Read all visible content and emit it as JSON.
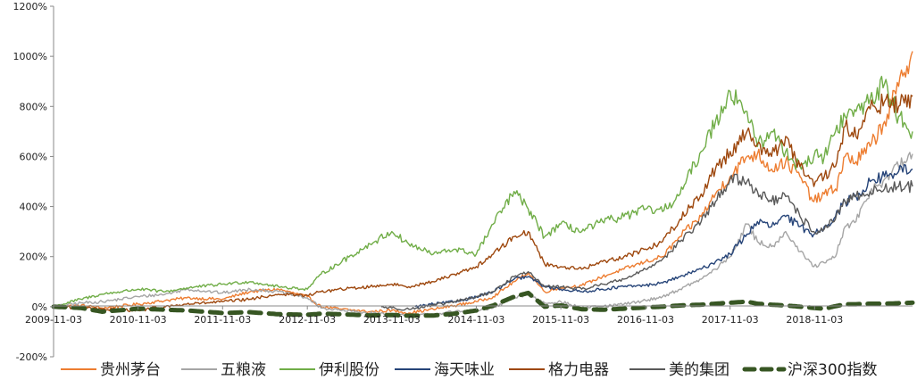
{
  "chart_data": {
    "type": "line",
    "title": "",
    "xlabel": "",
    "ylabel": "",
    "ylim": [
      -200,
      1200
    ],
    "y_unit": "%",
    "y_ticks": [
      -200,
      0,
      200,
      400,
      600,
      800,
      1000,
      1200
    ],
    "y_tick_labels": [
      "-200%",
      "0%",
      "200%",
      "400%",
      "600%",
      "800%",
      "1000%",
      "1200%"
    ],
    "x_range": [
      "2009-11-03",
      "2019-12-31"
    ],
    "x_ticks": [
      "2009-11-03",
      "2010-11-03",
      "2011-11-03",
      "2012-11-03",
      "2013-11-03",
      "2014-11-03",
      "2015-11-03",
      "2016-11-03",
      "2017-11-03",
      "2018-11-03"
    ],
    "x_tick_labels": [
      "2009-11-03",
      "2010-11-03",
      "2011-11-03",
      "2012-11-03",
      "2013-11-03",
      "2014-11-03",
      "2015-11-03",
      "2016-11-03",
      "2017-11-03",
      "2018-11-03"
    ],
    "grid": false,
    "legend_position": "bottom",
    "series": [
      {
        "name": "贵州茅台",
        "color": "#ED7D31",
        "dashed": false,
        "x": [
          "2009-11-03",
          "2010-03-01",
          "2010-06-01",
          "2010-11-03",
          "2011-03-01",
          "2011-06-01",
          "2011-11-03",
          "2012-03-01",
          "2012-07-01",
          "2012-11-03",
          "2013-01-01",
          "2013-04-01",
          "2013-08-01",
          "2013-11-03",
          "2014-01-15",
          "2014-05-01",
          "2014-08-01",
          "2014-11-03",
          "2015-01-15",
          "2015-04-15",
          "2015-06-15",
          "2015-08-25",
          "2015-11-03",
          "2016-02-01",
          "2016-05-01",
          "2016-08-01",
          "2016-11-03",
          "2017-01-15",
          "2017-04-01",
          "2017-07-01",
          "2017-09-01",
          "2017-11-03",
          "2018-01-15",
          "2018-03-01",
          "2018-05-01",
          "2018-07-01",
          "2018-09-01",
          "2018-10-31",
          "2018-12-15",
          "2019-02-01",
          "2019-03-15",
          "2019-05-01",
          "2019-07-01",
          "2019-09-01",
          "2019-11-01",
          "2019-12-31"
        ],
        "values": [
          0,
          5,
          -5,
          10,
          25,
          35,
          30,
          60,
          70,
          40,
          0,
          -10,
          -20,
          -15,
          -25,
          -10,
          5,
          20,
          40,
          100,
          135,
          60,
          75,
          85,
          120,
          150,
          180,
          200,
          280,
          360,
          450,
          520,
          600,
          610,
          550,
          580,
          520,
          420,
          450,
          470,
          600,
          580,
          640,
          740,
          880,
          1020
        ]
      },
      {
        "name": "五粮液",
        "color": "#A5A5A5",
        "dashed": false,
        "x": [
          "2009-11-03",
          "2010-03-01",
          "2010-06-01",
          "2010-11-03",
          "2011-03-01",
          "2011-06-01",
          "2011-11-03",
          "2012-03-01",
          "2012-07-01",
          "2012-11-03",
          "2013-01-01",
          "2013-04-01",
          "2013-08-01",
          "2013-11-03",
          "2014-01-15",
          "2014-05-01",
          "2014-08-01",
          "2014-11-03",
          "2015-01-15",
          "2015-04-15",
          "2015-06-15",
          "2015-08-25",
          "2015-11-03",
          "2016-02-01",
          "2016-05-01",
          "2016-08-01",
          "2016-11-03",
          "2017-01-15",
          "2017-04-01",
          "2017-07-01",
          "2017-09-01",
          "2017-11-03",
          "2018-01-15",
          "2018-03-01",
          "2018-05-01",
          "2018-07-01",
          "2018-09-01",
          "2018-10-31",
          "2018-12-15",
          "2019-02-01",
          "2019-03-15",
          "2019-05-01",
          "2019-07-01",
          "2019-09-01",
          "2019-11-01",
          "2019-12-31"
        ],
        "values": [
          0,
          15,
          20,
          40,
          50,
          70,
          55,
          70,
          60,
          35,
          -5,
          -15,
          -25,
          -30,
          -35,
          -30,
          -20,
          -15,
          -5,
          35,
          50,
          15,
          20,
          -5,
          0,
          10,
          25,
          40,
          70,
          110,
          150,
          200,
          330,
          260,
          240,
          300,
          220,
          160,
          175,
          200,
          320,
          340,
          460,
          510,
          560,
          610
        ]
      },
      {
        "name": "伊利股份",
        "color": "#70AD47",
        "dashed": false,
        "x": [
          "2009-11-03",
          "2010-03-01",
          "2010-06-01",
          "2010-11-03",
          "2011-03-01",
          "2011-06-01",
          "2011-11-03",
          "2012-03-01",
          "2012-07-01",
          "2012-11-03",
          "2013-01-01",
          "2013-04-01",
          "2013-08-01",
          "2013-11-03",
          "2014-01-15",
          "2014-05-01",
          "2014-08-01",
          "2014-11-03",
          "2015-01-15",
          "2015-04-15",
          "2015-06-15",
          "2015-08-25",
          "2015-11-03",
          "2016-02-01",
          "2016-05-01",
          "2016-08-01",
          "2016-11-03",
          "2017-01-15",
          "2017-04-01",
          "2017-07-01",
          "2017-09-01",
          "2017-11-03",
          "2018-01-15",
          "2018-03-01",
          "2018-05-01",
          "2018-07-01",
          "2018-09-01",
          "2018-10-31",
          "2018-12-15",
          "2019-02-01",
          "2019-03-15",
          "2019-05-01",
          "2019-07-01",
          "2019-09-01",
          "2019-11-01",
          "2019-12-31"
        ],
        "values": [
          0,
          30,
          50,
          70,
          60,
          75,
          90,
          100,
          80,
          70,
          130,
          180,
          250,
          300,
          250,
          210,
          230,
          210,
          330,
          460,
          390,
          280,
          330,
          300,
          340,
          360,
          390,
          380,
          450,
          620,
          740,
          860,
          780,
          640,
          700,
          620,
          560,
          600,
          600,
          700,
          760,
          780,
          830,
          890,
          760,
          700
        ]
      },
      {
        "name": "海天味业",
        "color": "#264478",
        "dashed": false,
        "x": [
          "2014-02-11",
          "2014-05-01",
          "2014-08-01",
          "2014-11-03",
          "2015-01-15",
          "2015-04-15",
          "2015-06-15",
          "2015-08-25",
          "2015-11-03",
          "2016-02-01",
          "2016-05-01",
          "2016-08-01",
          "2016-11-03",
          "2017-01-15",
          "2017-04-01",
          "2017-07-01",
          "2017-09-01",
          "2017-11-03",
          "2018-01-15",
          "2018-03-01",
          "2018-05-01",
          "2018-07-01",
          "2018-09-01",
          "2018-10-31",
          "2018-12-15",
          "2019-02-01",
          "2019-03-15",
          "2019-05-01",
          "2019-07-01",
          "2019-09-01",
          "2019-11-01",
          "2019-12-31"
        ],
        "values": [
          0,
          10,
          20,
          40,
          60,
          110,
          120,
          80,
          70,
          60,
          70,
          80,
          85,
          95,
          120,
          150,
          180,
          210,
          290,
          340,
          320,
          360,
          320,
          290,
          320,
          360,
          420,
          440,
          500,
          520,
          540,
          550
        ]
      },
      {
        "name": "格力电器",
        "color": "#9E480E",
        "dashed": false,
        "x": [
          "2009-11-03",
          "2010-03-01",
          "2010-06-01",
          "2010-11-03",
          "2011-03-01",
          "2011-06-01",
          "2011-11-03",
          "2012-03-01",
          "2012-07-01",
          "2012-11-03",
          "2013-01-01",
          "2013-04-01",
          "2013-08-01",
          "2013-11-03",
          "2014-01-15",
          "2014-05-01",
          "2014-08-01",
          "2014-11-03",
          "2015-01-15",
          "2015-04-15",
          "2015-06-15",
          "2015-08-25",
          "2015-11-03",
          "2016-02-01",
          "2016-05-01",
          "2016-08-01",
          "2016-11-03",
          "2017-01-15",
          "2017-04-01",
          "2017-07-01",
          "2017-09-01",
          "2017-11-03",
          "2018-01-15",
          "2018-03-01",
          "2018-05-01",
          "2018-07-01",
          "2018-09-01",
          "2018-10-31",
          "2018-12-15",
          "2019-02-01",
          "2019-03-15",
          "2019-05-01",
          "2019-07-01",
          "2019-09-01",
          "2019-11-01",
          "2019-12-31"
        ],
        "values": [
          0,
          -5,
          -10,
          -15,
          0,
          10,
          20,
          30,
          50,
          45,
          60,
          70,
          80,
          90,
          80,
          100,
          130,
          160,
          210,
          280,
          300,
          170,
          160,
          150,
          180,
          200,
          230,
          260,
          350,
          450,
          550,
          620,
          700,
          650,
          600,
          680,
          560,
          480,
          520,
          560,
          720,
          680,
          790,
          820,
          800,
          840
        ]
      },
      {
        "name": "美的集团",
        "color": "#595959",
        "dashed": false,
        "x": [
          "2013-09-18",
          "2013-11-03",
          "2014-01-15",
          "2014-05-01",
          "2014-08-01",
          "2014-11-03",
          "2015-01-15",
          "2015-04-15",
          "2015-06-15",
          "2015-08-25",
          "2015-11-03",
          "2016-02-01",
          "2016-05-01",
          "2016-08-01",
          "2016-11-03",
          "2017-01-15",
          "2017-04-01",
          "2017-07-01",
          "2017-09-01",
          "2017-11-03",
          "2018-01-15",
          "2018-03-01",
          "2018-05-01",
          "2018-07-01",
          "2018-09-01",
          "2018-10-31",
          "2018-12-15",
          "2019-02-01",
          "2019-03-15",
          "2019-05-01",
          "2019-07-01",
          "2019-09-01",
          "2019-11-01",
          "2019-12-31"
        ],
        "values": [
          0,
          -5,
          -10,
          5,
          20,
          40,
          60,
          120,
          140,
          80,
          80,
          70,
          90,
          110,
          150,
          190,
          260,
          340,
          420,
          510,
          500,
          460,
          420,
          440,
          360,
          300,
          310,
          350,
          420,
          440,
          460,
          470,
          480,
          480
        ]
      },
      {
        "name": "沪深300指数",
        "color": "#375623",
        "dashed": true,
        "x": [
          "2009-11-03",
          "2010-03-01",
          "2010-06-01",
          "2010-11-03",
          "2011-03-01",
          "2011-06-01",
          "2011-11-03",
          "2012-03-01",
          "2012-07-01",
          "2012-11-03",
          "2013-01-01",
          "2013-04-01",
          "2013-08-01",
          "2013-11-03",
          "2014-01-15",
          "2014-05-01",
          "2014-08-01",
          "2014-11-03",
          "2015-01-15",
          "2015-04-15",
          "2015-06-15",
          "2015-08-25",
          "2015-11-03",
          "2016-02-01",
          "2016-05-01",
          "2016-08-01",
          "2016-11-03",
          "2017-01-15",
          "2017-04-01",
          "2017-07-01",
          "2017-09-01",
          "2017-11-03",
          "2018-01-15",
          "2018-03-01",
          "2018-05-01",
          "2018-07-01",
          "2018-09-01",
          "2018-10-31",
          "2018-12-15",
          "2019-02-01",
          "2019-03-15",
          "2019-05-01",
          "2019-07-01",
          "2019-09-01",
          "2019-11-01",
          "2019-12-31"
        ],
        "values": [
          0,
          -5,
          -20,
          -8,
          -12,
          -15,
          -25,
          -22,
          -30,
          -32,
          -28,
          -30,
          -35,
          -33,
          -36,
          -35,
          -28,
          -15,
          5,
          40,
          55,
          0,
          5,
          -10,
          -12,
          -8,
          -3,
          0,
          5,
          8,
          12,
          16,
          20,
          12,
          8,
          5,
          0,
          -5,
          -8,
          2,
          10,
          10,
          12,
          12,
          14,
          16
        ]
      }
    ]
  }
}
